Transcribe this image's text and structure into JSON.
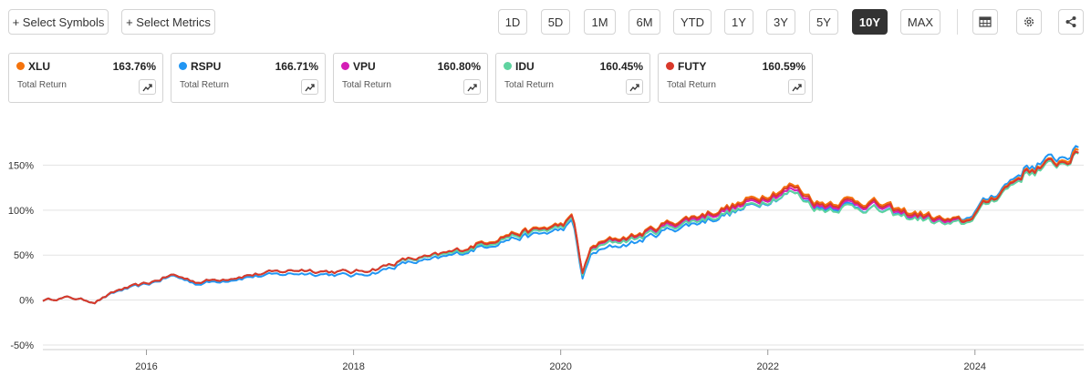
{
  "toolbar": {
    "select_symbols": "+ Select Symbols",
    "select_metrics": "+ Select Metrics",
    "ranges": [
      "1D",
      "5D",
      "1M",
      "6M",
      "YTD",
      "1Y",
      "3Y",
      "5Y",
      "10Y",
      "MAX"
    ],
    "active_range": "10Y",
    "icons": [
      "table-icon",
      "gear-icon",
      "share-icon"
    ]
  },
  "cards": [
    {
      "symbol": "XLU",
      "value": "163.76%",
      "label": "Total Return",
      "color": "#f5730c"
    },
    {
      "symbol": "RSPU",
      "value": "166.71%",
      "label": "Total Return",
      "color": "#2196f3"
    },
    {
      "symbol": "VPU",
      "value": "160.80%",
      "label": "Total Return",
      "color": "#d41eb6"
    },
    {
      "symbol": "IDU",
      "value": "160.45%",
      "label": "Total Return",
      "color": "#5fd3a0"
    },
    {
      "symbol": "FUTY",
      "value": "160.59%",
      "label": "Total Return",
      "color": "#d9392b"
    }
  ],
  "chart_data": {
    "type": "line",
    "y_ticks": [
      "150%",
      "100%",
      "50%",
      "0%",
      "-50%"
    ],
    "y_tick_values": [
      150,
      100,
      50,
      0,
      -50
    ],
    "x_ticks": [
      "2016",
      "2018",
      "2020",
      "2022",
      "2024"
    ],
    "x_tick_values": [
      2016,
      2018,
      2020,
      2022,
      2024
    ],
    "xlim": [
      2015.0,
      2025.05
    ],
    "ylim": [
      -55,
      200
    ],
    "grid": true,
    "x": [
      2015.0,
      2015.25,
      2015.5,
      2015.75,
      2016.0,
      2016.25,
      2016.5,
      2016.75,
      2017.0,
      2017.25,
      2017.5,
      2017.75,
      2018.0,
      2018.25,
      2018.5,
      2018.75,
      2019.0,
      2019.25,
      2019.5,
      2019.75,
      2020.0,
      2020.12,
      2020.21,
      2020.3,
      2020.5,
      2020.75,
      2021.0,
      2021.25,
      2021.5,
      2021.75,
      2022.0,
      2022.25,
      2022.5,
      2022.75,
      2023.0,
      2023.25,
      2023.5,
      2023.75,
      2023.92,
      2024.0,
      2024.25,
      2024.5,
      2024.75,
      2025.0
    ],
    "series": [
      {
        "name": "XLU",
        "color": "#f5730c",
        "values": [
          0,
          3,
          -2,
          12,
          18,
          28,
          20,
          24,
          28,
          31,
          34,
          32,
          31,
          36,
          45,
          48,
          55,
          65,
          74,
          78,
          84,
          92,
          30,
          60,
          68,
          73,
          85,
          92,
          100,
          108,
          120,
          128,
          108,
          112,
          110,
          100,
          96,
          88,
          88,
          98,
          122,
          145,
          152,
          164
        ]
      },
      {
        "name": "RSPU",
        "color": "#2196f3",
        "values": [
          0,
          3,
          -2,
          11,
          17,
          27,
          18,
          22,
          26,
          28,
          30,
          29,
          27,
          32,
          41,
          44,
          51,
          60,
          68,
          72,
          78,
          86,
          24,
          52,
          59,
          65,
          77,
          84,
          92,
          100,
          112,
          120,
          102,
          106,
          102,
          94,
          92,
          86,
          90,
          100,
          124,
          148,
          156,
          167
        ]
      },
      {
        "name": "VPU",
        "color": "#d41eb6",
        "values": [
          0,
          3,
          -2,
          12,
          18,
          28,
          20,
          24,
          28,
          31,
          34,
          32,
          31,
          36,
          44,
          47,
          54,
          63,
          72,
          76,
          82,
          90,
          29,
          58,
          66,
          71,
          82,
          89,
          97,
          104,
          116,
          123,
          104,
          108,
          106,
          96,
          92,
          85,
          86,
          96,
          120,
          142,
          150,
          161
        ]
      },
      {
        "name": "IDU",
        "color": "#5fd3a0",
        "values": [
          0,
          3,
          -2,
          12,
          18,
          28,
          20,
          24,
          28,
          31,
          34,
          32,
          31,
          36,
          44,
          47,
          53,
          62,
          71,
          75,
          81,
          89,
          28,
          56,
          64,
          69,
          80,
          87,
          94,
          101,
          113,
          120,
          100,
          104,
          102,
          93,
          90,
          83,
          85,
          95,
          119,
          141,
          149,
          160
        ]
      },
      {
        "name": "FUTY",
        "color": "#d9392b",
        "values": [
          0,
          3,
          -2,
          12,
          18,
          28,
          20,
          24,
          28,
          31,
          34,
          32,
          31,
          36,
          45,
          48,
          55,
          64,
          73,
          77,
          83,
          91,
          30,
          59,
          67,
          72,
          84,
          91,
          99,
          106,
          118,
          126,
          106,
          110,
          108,
          98,
          94,
          87,
          87,
          97,
          121,
          144,
          151,
          161
        ]
      }
    ]
  }
}
